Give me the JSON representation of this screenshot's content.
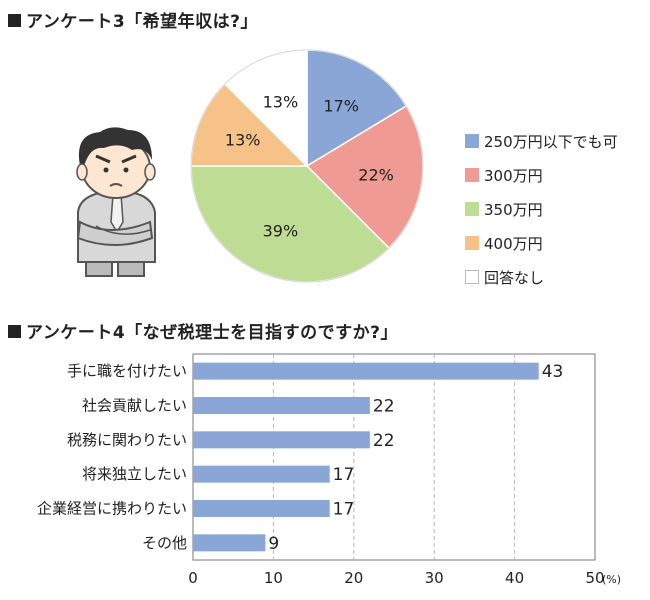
{
  "survey3": {
    "title": "アンケート3「希望年収は?」"
  },
  "survey4": {
    "title": "アンケート4「なぜ税理士を目指すのですか?」"
  },
  "chart_data": [
    {
      "type": "pie",
      "title": "アンケート3「希望年収は?」",
      "slices": [
        {
          "label": "250万円以下でも可",
          "value": 17,
          "value_label": "17%",
          "color": "#8aa6d6"
        },
        {
          "label": "300万円",
          "value": 22,
          "value_label": "22%",
          "color": "#ef9a92"
        },
        {
          "label": "350万円",
          "value": 39,
          "value_label": "39%",
          "color": "#bfdc94"
        },
        {
          "label": "400万円",
          "value": 13,
          "value_label": "13%",
          "color": "#f7c287"
        },
        {
          "label": "回答なし",
          "value": 13,
          "value_label": "13%",
          "color": "#ffffff"
        }
      ],
      "start": "top, clockwise"
    },
    {
      "type": "bar",
      "orientation": "horizontal",
      "title": "アンケート4「なぜ税理士を目指すのですか?」",
      "categories": [
        "手に職を付けたい",
        "社会貢献したい",
        "税務に関わりたい",
        "将来独立したい",
        "企業経営に携わりたい",
        "その他"
      ],
      "values": [
        43,
        22,
        22,
        17,
        17,
        9
      ],
      "value_labels": [
        "43",
        "22",
        "22",
        "17",
        "17",
        "9"
      ],
      "xlim": [
        0,
        50
      ],
      "xticks": [
        "0",
        "10",
        "20",
        "30",
        "40",
        "50"
      ],
      "unit": "(%)",
      "bar_color": "#8aa6d6",
      "grid": "vertical dashed"
    }
  ]
}
